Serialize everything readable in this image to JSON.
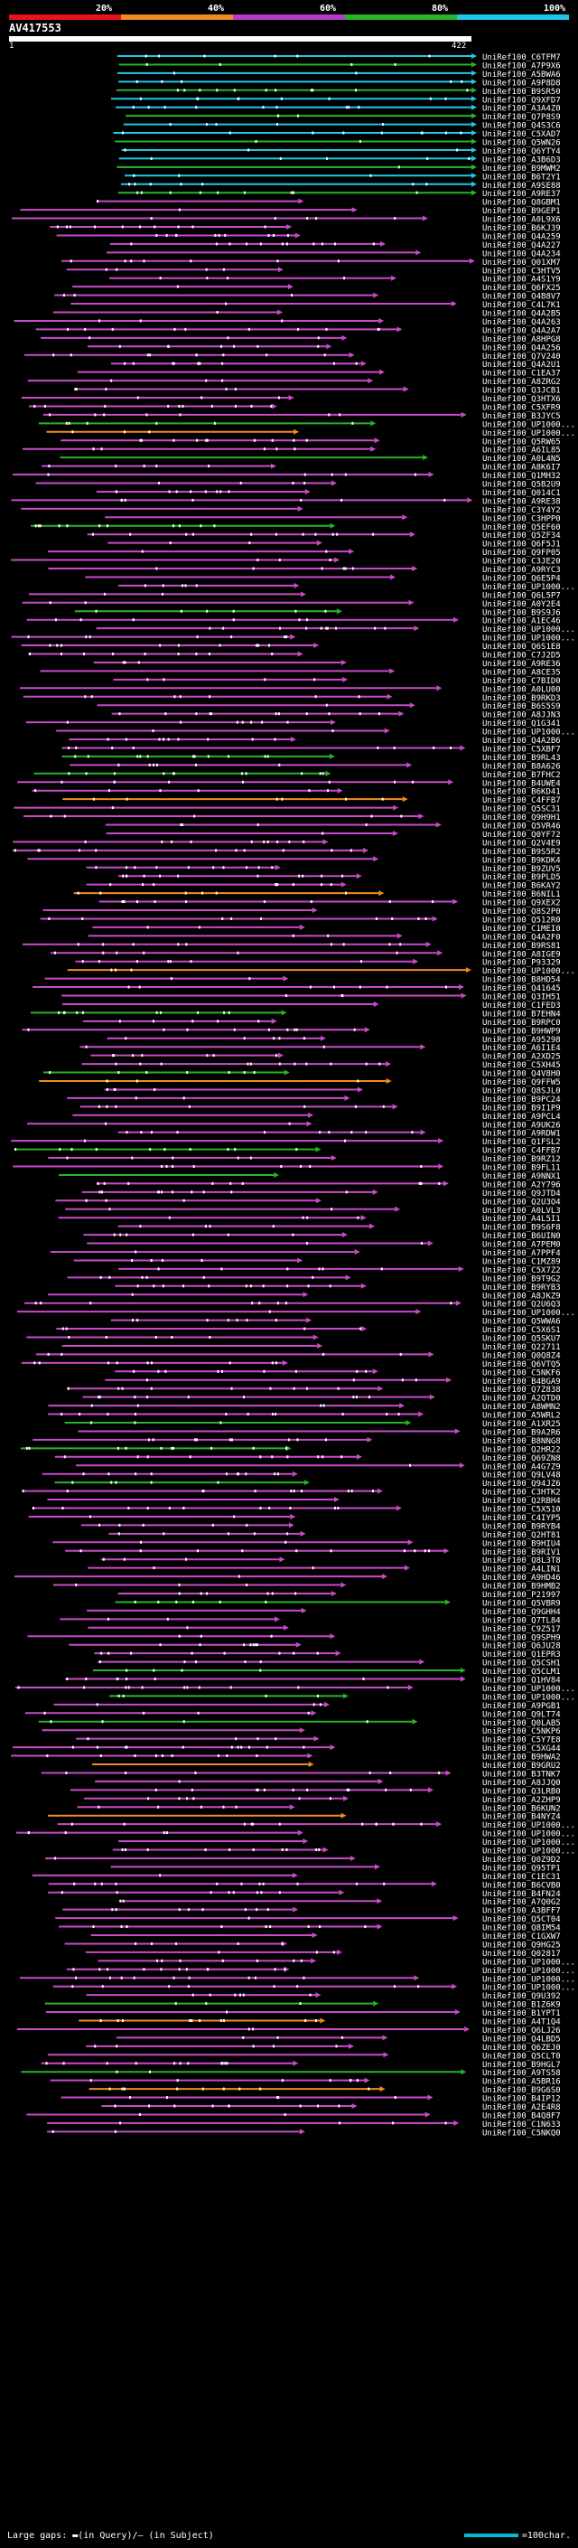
{
  "legend": [
    {
      "label": "20%",
      "color": "#e6141e"
    },
    {
      "label": "40%",
      "color": "#f08c1e"
    },
    {
      "label": "60%",
      "color": "#b43cc8"
    },
    {
      "label": "80%",
      "color": "#28b428"
    },
    {
      "label": "100%",
      "color": "#1ec8e6"
    }
  ],
  "query": {
    "title": "AV417553",
    "start": "1",
    "end": "422"
  },
  "footer": {
    "gaps_text": "Large gaps: ▬(in Query)/— (in Subject)",
    "scale_text": "=100char."
  },
  "chart_data": {
    "type": "alignment",
    "title": "AV417553",
    "query_length": 422,
    "hits": [
      "UniRef100_C6TFM7",
      "UniRef100_A7P9X6",
      "UniRef100_A5BWA6",
      "UniRef100_A9P8D8",
      "UniRef100_B9SR50",
      "UniRef100_Q9XFD7",
      "UniRef100_A3A4Z0",
      "UniRef100_Q7P8S9",
      "UniRef100_Q4S3C6",
      "UniRef100_C5XAD7",
      "UniRef100_Q5WN26",
      "UniRef100_Q6YTY4",
      "UniRef100_A3B6D3",
      "UniRef100_B9MWM2",
      "UniRef100_B6T2Y1",
      "UniRef100_A9SE88",
      "UniRef100_A9RE37",
      "UniRef100_Q8GBM1",
      "UniRef100_B9GEP1",
      "UniRef100_A0L9X6",
      "UniRef100_B6KJ39",
      "UniRef100_Q4A259",
      "UniRef100_Q4A227",
      "UniRef100_Q4A234",
      "UniRef100_Q01XM7",
      "UniRef100_C3HTV5",
      "UniRef100_A4S1Y9",
      "UniRef100_Q6FX25",
      "UniRef100_Q4B8V7",
      "UniRef100_C4L7K1",
      "UniRef100_Q4A2B5",
      "UniRef100_Q4A263",
      "UniRef100_Q4A2A7",
      "UniRef100_A8HPG8",
      "UniRef100_Q4A256",
      "UniRef100_Q7V240",
      "UniRef100_Q4A2U1",
      "UniRef100_C1EA37",
      "UniRef100_A8ZRG2",
      "UniRef100_Q3JCB1",
      "UniRef100_Q3HTX6",
      "UniRef100_C5XFR9",
      "UniRef100_B3JYC5",
      "UniRef100_UP1000...",
      "UniRef100_UP1000...",
      "UniRef100_Q5RW65",
      "UniRef100_A6IL85",
      "UniRef100_A0L4N5",
      "UniRef100_A8K6I7",
      "UniRef100_Q1MH32",
      "UniRef100_Q5B2U9",
      "UniRef100_Q014C1",
      "UniRef100_A9RE38",
      "UniRef100_C3Y4Y2",
      "UniRef100_C3HPP0",
      "UniRef100_Q5EF60",
      "UniRef100_Q5ZF34",
      "UniRef100_Q6F5J1",
      "UniRef100_Q9FP05",
      "UniRef100_C3JE20",
      "UniRef100_A9RYC3",
      "UniRef100_Q6E5P4",
      "UniRef100_UP1000...",
      "UniRef100_Q6L5P7",
      "UniRef100_A0Y2E4",
      "UniRef100_B9S9J6",
      "UniRef100_A1EC46",
      "UniRef100_UP1000...",
      "UniRef100_UP1000...",
      "UniRef100_Q6S1E8",
      "UniRef100_C7J2D5",
      "UniRef100_A9RE36",
      "UniRef100_A8CE35",
      "UniRef100_C7BID0",
      "UniRef100_A0LU00",
      "UniRef100_B9RKD3",
      "UniRef100_B6S5S9",
      "UniRef100_A8JJN3",
      "UniRef100_Q1G341",
      "UniRef100_UP1000...",
      "UniRef100_Q4A2B6",
      "UniRef100_C5XBF7",
      "UniRef100_B9RL43",
      "UniRef100_B8A626",
      "UniRef100_B7FHC2",
      "UniRef100_B4UWE4",
      "UniRef100_B6KD41",
      "UniRef100_C4FFB7",
      "UniRef100_Q5SC31",
      "UniRef100_Q9H9H1",
      "UniRef100_Q5VR46",
      "UniRef100_Q0YF72",
      "UniRef100_Q2V4E9",
      "UniRef100_B9S5R2",
      "UniRef100_B9KDK4",
      "UniRef100_B9ZUV5",
      "UniRef100_B9PLD5",
      "UniRef100_B6KAY2",
      "UniRef100_B6NIL1",
      "UniRef100_Q9XEX2",
      "UniRef100_Q8S2P0",
      "UniRef100_Q512R0",
      "UniRef100_C1MEI0",
      "UniRef100_Q4A2F0",
      "UniRef100_B9RS81",
      "UniRef100_A8IGE9",
      "UniRef100_P93329",
      "UniRef100_UP1000...",
      "UniRef100_B8HD54",
      "UniRef100_Q41645",
      "UniRef100_Q3IH51",
      "UniRef100_C1FED3",
      "UniRef100_B7EHN4",
      "UniRef100_B9RPC0",
      "UniRef100_B9HWP9",
      "UniRef100_A95298",
      "UniRef100_A6I1E4",
      "UniRef100_A2XD25",
      "UniRef100_C5XH45",
      "UniRef100_Q4V8H0",
      "UniRef100_Q9FFW5",
      "UniRef100_Q8SJL0",
      "UniRef100_B9PC24",
      "UniRef100_B9I1P9",
      "UniRef100_A9PCL4",
      "UniRef100_A9UK26",
      "UniRef100_A9RDW1",
      "UniRef100_Q1FSL2",
      "UniRef100_C4FFB7",
      "UniRef100_B9RZ12",
      "UniRef100_B9FL11",
      "UniRef100_A9NNX1",
      "UniRef100_A2Y796",
      "UniRef100_Q9JTD4",
      "UniRef100_Q2U3O4",
      "UniRef100_A0LVL3",
      "UniRef100_A4L5I1",
      "UniRef100_B9S6F8",
      "UniRef100_B6UIN0",
      "UniRef100_A7PEM0",
      "UniRef100_A7PPF4",
      "UniRef100_C1MZ89",
      "UniRef100_C5X7Z2",
      "UniRef100_B9T9G2",
      "UniRef100_B9RYB3",
      "UniRef100_A8JKZ9",
      "UniRef100_Q2U6Q3",
      "UniRef100_UP1000...",
      "UniRef100_Q5WWA6",
      "UniRef100_C5X6S1",
      "UniRef100_Q5SKU7",
      "UniRef100_Q22711",
      "UniRef100_Q0Q8Z4",
      "UniRef100_Q6VTQ5",
      "UniRef100_C5NKF6",
      "UniRef100_B4BGA9",
      "UniRef100_Q7Z838",
      "UniRef100_A2QTD0",
      "UniRef100_A8WMN2",
      "UniRef100_A5WRL2",
      "UniRef100_A1XR25",
      "UniRef100_B9A2R6",
      "UniRef100_B8NNG8",
      "UniRef100_Q2HR22",
      "UniRef100_Q69ZN8",
      "UniRef100_A4G7Z9",
      "UniRef100_Q9LV48",
      "UniRef100_Q94JZ6",
      "UniRef100_C3HTK2",
      "UniRef100_Q2RBH4",
      "UniRef100_C5X510",
      "UniRef100_C4IYP5",
      "UniRef100_B9RYB4",
      "UniRef100_Q2HT81",
      "UniRef100_B9HIU4",
      "UniRef100_B9RIV1",
      "UniRef100_Q8L3T8",
      "UniRef100_A4LIN1",
      "UniRef100_A9HD46",
      "UniRef100_B9HMB2",
      "UniRef100_P21997",
      "UniRef100_Q5VBR9",
      "UniRef100_Q9GHH4",
      "UniRef100_Q7TL84",
      "UniRef100_C9Z517",
      "UniRef100_Q9SPH9",
      "UniRef100_Q6JU28",
      "UniRef100_Q1EPR3",
      "UniRef100_Q5CSH1",
      "UniRef100_Q5CLM1",
      "UniRef100_Q1HV84",
      "UniRef100_UP1000...",
      "UniRef100_UP1000...",
      "UniRef100_A9PGB1",
      "UniRef100_Q9LT74",
      "UniRef100_Q0LAB5",
      "UniRef100_C5NKP6",
      "UniRef100_C5Y7E8",
      "UniRef100_C5XG44",
      "UniRef100_B9HWA2",
      "UniRef100_B9GRU2",
      "UniRef100_B3TNK7",
      "UniRef100_A8JJQ0",
      "UniRef100_Q3LRB0",
      "UniRef100_A2ZHP9",
      "UniRef100_B6KUN2",
      "UniRef100_B4NYZ4",
      "UniRef100_UP1000...",
      "UniRef100_UP1000...",
      "UniRef100_UP1000...",
      "UniRef100_UP1000...",
      "UniRef100_Q0Z9D2",
      "UniRef100_Q95TP1",
      "UniRef100_C1EC31",
      "UniRef100_B6CVB0",
      "UniRef100_B4FN24",
      "UniRef100_A7Q0G2",
      "UniRef100_A3BFF7",
      "UniRef100_Q5CT04",
      "UniRef100_Q8IM54",
      "UniRef100_C1GXW7",
      "UniRef100_Q9HG25",
      "UniRef100_Q02817",
      "UniRef100_UP1000...",
      "UniRef100_UP1000...",
      "UniRef100_UP1000...",
      "UniRef100_UP1000...",
      "UniRef100_Q9U392",
      "UniRef100_B1Z6K9",
      "UniRef100_B1YPT1",
      "UniRef100_A4T1Q4",
      "UniRef100_Q6LJ26",
      "UniRef100_Q4LBD5",
      "UniRef100_Q6ZEJ0",
      "UniRef100_Q5CLT0",
      "UniRef100_B9HGL7",
      "UniRef100_A9TS58",
      "UniRef100_A5BR16",
      "UniRef100_B9G6S0",
      "UniRef100_B4IP12",
      "UniRef100_A2E4R8",
      "UniRef100_B4Q8F7",
      "UniRef100_C1N633",
      "UniRef100_C5NKQ0"
    ]
  }
}
